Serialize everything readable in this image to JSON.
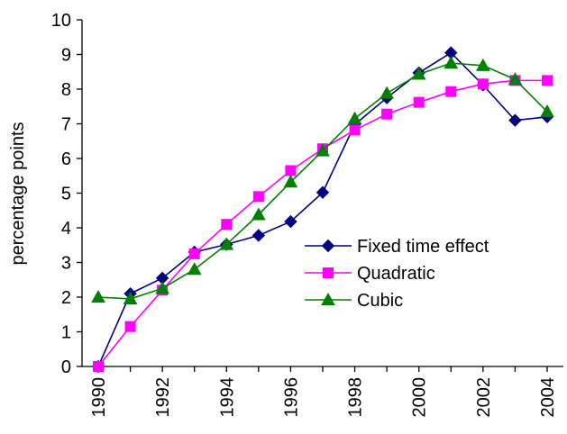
{
  "chart_data": {
    "type": "line",
    "title": "",
    "xlabel": "",
    "ylabel": "percentage points",
    "ylim": [
      0,
      10
    ],
    "yticks": [
      0,
      1,
      2,
      3,
      4,
      5,
      6,
      7,
      8,
      9,
      10
    ],
    "x": [
      1990,
      1991,
      1992,
      1993,
      1994,
      1995,
      1996,
      1997,
      1998,
      1999,
      2000,
      2001,
      2002,
      2003,
      2004
    ],
    "xtick_labels": [
      "1990",
      "1992",
      "1994",
      "1996",
      "1998",
      "2000",
      "2002",
      "2004"
    ],
    "xtick_values": [
      1990,
      1992,
      1994,
      1996,
      1998,
      2000,
      2002,
      2004
    ],
    "grid": false,
    "legend_position": "center-right",
    "series": [
      {
        "name": "Fixed time effect",
        "color": "#000080",
        "marker": "diamond",
        "values": [
          0.0,
          2.1,
          2.55,
          3.3,
          3.52,
          3.78,
          4.18,
          5.02,
          6.98,
          7.75,
          8.47,
          9.05,
          8.12,
          7.1,
          7.2
        ]
      },
      {
        "name": "Quadratic",
        "color": "#ff00ff",
        "marker": "square",
        "values": [
          0.0,
          1.15,
          2.2,
          3.25,
          4.1,
          4.9,
          5.65,
          6.28,
          6.82,
          7.28,
          7.62,
          7.93,
          8.15,
          8.25,
          8.25
        ]
      },
      {
        "name": "Cubic",
        "color": "#008000",
        "marker": "triangle",
        "values": [
          2.0,
          1.95,
          2.25,
          2.8,
          3.52,
          4.38,
          5.32,
          6.22,
          7.15,
          7.88,
          8.43,
          8.75,
          8.68,
          8.28,
          7.35
        ]
      }
    ]
  }
}
